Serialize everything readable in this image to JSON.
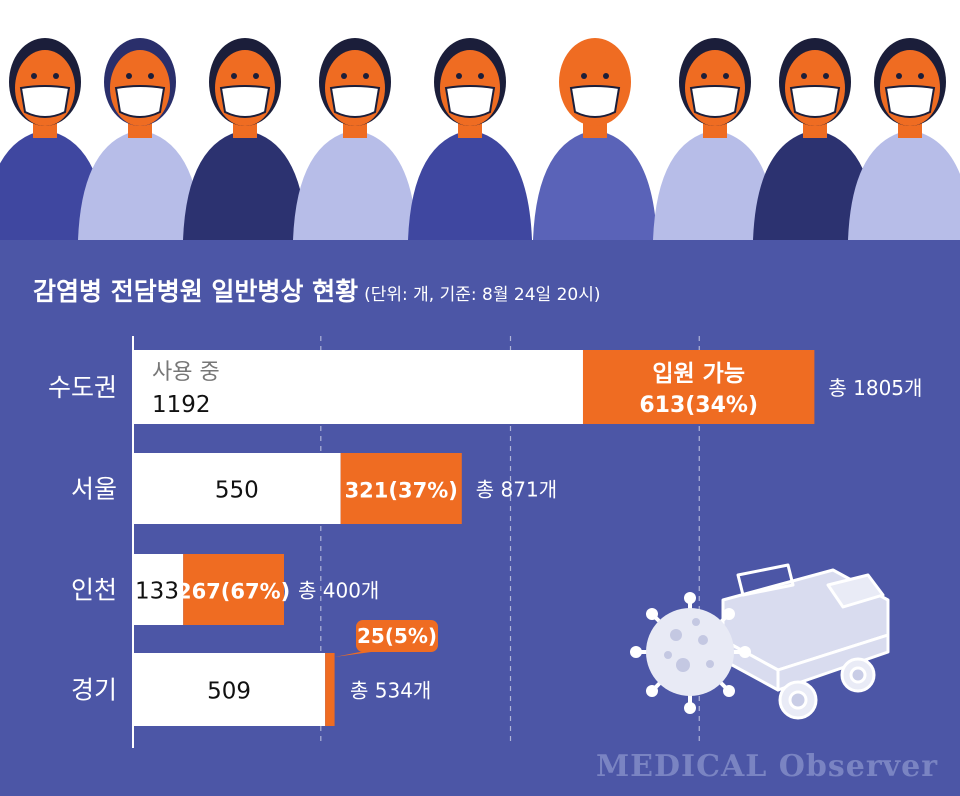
{
  "colors": {
    "background": "#4c56a6",
    "used_bar": "#ffffff",
    "available_bar": "#ef6c22",
    "axis_line": "#ffffff",
    "grid_line": "#ffffff",
    "label_text": "#ffffff",
    "used_value_text": "#111111",
    "used_header_text": "#777777",
    "available_text": "#ffffff"
  },
  "header": {
    "title": "감염병 전담병원 일반병상 현황",
    "subtitle": "(단위: 개, 기준: 8월 24일 20시)"
  },
  "watermark": "MEDICAL Observer",
  "chart_data": {
    "type": "bar",
    "orientation": "horizontal",
    "stacked": true,
    "categories": [
      "수도권",
      "서울",
      "인천",
      "경기"
    ],
    "series": [
      {
        "name": "사용 중",
        "values": [
          1192,
          550,
          133,
          509
        ],
        "labels": [
          "1192",
          "550",
          "133",
          "509"
        ]
      },
      {
        "name": "입원 가능",
        "values": [
          613,
          321,
          267,
          25
        ],
        "labels": [
          "613(34%)",
          "321(37%)",
          "267(67%)",
          "25(5%)"
        ]
      }
    ],
    "totals": [
      "총 1805개",
      "총 871개",
      "총 400개",
      "총 534개"
    ],
    "in_bar_series_labels": {
      "used": "사용 중",
      "available": "입원 가능"
    },
    "xlim": [
      0,
      2250
    ],
    "grid": true,
    "legend": "none"
  },
  "illustration": {
    "virus_icon": "virus-icon",
    "bed_icon": "hospital-bed-icon",
    "people_banner": "masked-people-illustration"
  }
}
